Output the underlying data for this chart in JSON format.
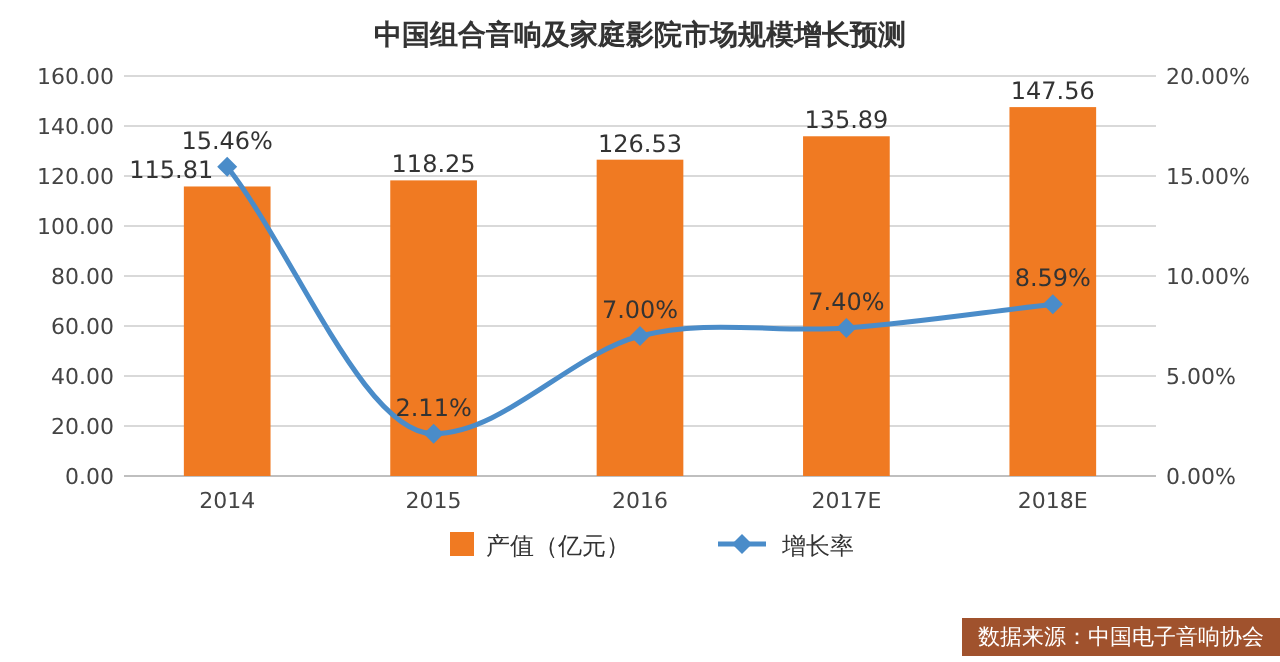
{
  "chart_data": {
    "type": "bar",
    "title": "中国组合音响及家庭影院市场规模增长预测",
    "categories": [
      "2014",
      "2015",
      "2016",
      "2017E",
      "2018E"
    ],
    "series": [
      {
        "name": "产值（亿元）",
        "color": "#f07a22",
        "values": [
          115.81,
          118.25,
          126.53,
          135.89,
          147.56
        ],
        "value_labels": [
          "115.81",
          "118.25",
          "126.53",
          "135.89",
          "147.56"
        ]
      },
      {
        "name": "增长率",
        "type": "line",
        "axis": "y2",
        "color": "#4a8cc9",
        "values": [
          15.46,
          2.11,
          7.0,
          7.4,
          8.59
        ],
        "value_labels": [
          "15.46%",
          "2.11%",
          "7.00%",
          "7.40%",
          "8.59%"
        ]
      }
    ],
    "ylim": [
      0,
      160
    ],
    "yticks": [
      {
        "value": 0,
        "label": "0.00"
      },
      {
        "value": 20,
        "label": "20.00"
      },
      {
        "value": 40,
        "label": "40.00"
      },
      {
        "value": 60,
        "label": "60.00"
      },
      {
        "value": 80,
        "label": "80.00"
      },
      {
        "value": 100,
        "label": "100.00"
      },
      {
        "value": 120,
        "label": "120.00"
      },
      {
        "value": 140,
        "label": "140.00"
      },
      {
        "value": 160,
        "label": "160.00"
      }
    ],
    "y2lim": [
      0,
      20
    ],
    "y2ticks": [
      {
        "value": 0,
        "label": "0.00%"
      },
      {
        "value": 5,
        "label": "5.00%"
      },
      {
        "value": 10,
        "label": "10.00%"
      },
      {
        "value": 15,
        "label": "15.00%"
      },
      {
        "value": 20,
        "label": "20.00%"
      }
    ],
    "grid": "y",
    "legend": "bottom",
    "marker": "diamond",
    "annotations": [
      "数据来源：中国电子音响协会"
    ]
  }
}
